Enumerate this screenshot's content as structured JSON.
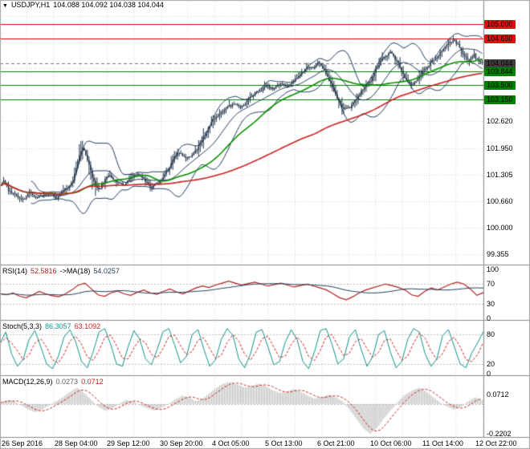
{
  "header": {
    "expand_icon": "▼",
    "symbol": "USDJPY,H1",
    "ohlc": "104.088 104.092 104.038 104.044"
  },
  "colors": {
    "grid": "#d6d6d6",
    "candle": "#24364a",
    "bollinger": "#1f3a5f",
    "ma_red": "#cc2020",
    "ma_green": "#089000",
    "hline_red": "#e00000",
    "hline_green": "#007f00",
    "price_line": "#777777",
    "badge_red": "#dd1111",
    "badge_green": "#007f00",
    "badge_dark": "#3f3f3f",
    "rsi": "#b22222",
    "rsi_ma": "#24425f",
    "stoch": "#12948b",
    "stoch_signal": "#cc2222",
    "macd_hist": "#b5b5b5",
    "macd_signal": "#cc2222",
    "levels": "#bdbdbd",
    "divider": "#8a8a8a",
    "border": "#a8a8a8"
  },
  "price_axis": {
    "badges": [
      {
        "label": "105.000",
        "value": 105.0,
        "type": "red"
      },
      {
        "label": "104.650",
        "value": 104.65,
        "type": "red"
      },
      {
        "label": "104.044",
        "value": 104.044,
        "type": "dark"
      },
      {
        "label": "103.844",
        "value": 103.844,
        "type": "green"
      },
      {
        "label": "103.500",
        "value": 103.5,
        "type": "green"
      },
      {
        "label": "103.150",
        "value": 103.15,
        "type": "green"
      }
    ],
    "labels": [
      {
        "label": "102.620",
        "value": 102.62
      },
      {
        "label": "101.950",
        "value": 101.95
      },
      {
        "label": "101.305",
        "value": 101.305
      },
      {
        "label": "100.660",
        "value": 100.66
      },
      {
        "label": "100.000",
        "value": 100.0
      },
      {
        "label": "99.355",
        "value": 99.355
      }
    ]
  },
  "panels": {
    "rsi": {
      "title": "RSI(14)",
      "value": "52.5816",
      "title2": "->MA(18)",
      "value2": "54.0257",
      "labels": [
        {
          "label": "100",
          "value": 100
        },
        {
          "label": "70",
          "value": 70
        },
        {
          "label": "30",
          "value": 30
        },
        {
          "label": "0",
          "value": 0
        }
      ]
    },
    "stoch": {
      "title": "Stoch(5,3,3)",
      "value": "86.3057",
      "value2": "63.1092",
      "labels": [
        {
          "label": "80",
          "value": 80
        },
        {
          "label": "20",
          "value": 20
        },
        {
          "label": "0",
          "value": 0
        }
      ]
    },
    "macd": {
      "title": "MACD(12,26,9)",
      "value": "0.0273",
      "value2": "0.0712",
      "labels": [
        {
          "label": "0.0712",
          "value": 0.0712
        },
        {
          "label": "-0.2202",
          "value": -0.2202
        }
      ]
    }
  },
  "time_axis": {
    "labels": [
      "26 Sep 2016",
      "28 Sep 04:00",
      "29 Sep 12:00",
      "30 Sep 20:00",
      "4 Oct 05:00",
      "5 Oct 13:00",
      "6 Oct 21:00",
      "10 Oct 06:00",
      "11 Oct 14:00",
      "12 Oct 22:00"
    ]
  },
  "chart_data": [
    {
      "type": "candlestick",
      "title": "USDJPY,H1",
      "timeframe": "H1",
      "last_bar": {
        "open": 104.088,
        "high": 104.092,
        "low": 104.038,
        "close": 104.044
      },
      "ylim": [
        99.1,
        105.59
      ],
      "bars": 300,
      "noise_seed": 42,
      "grid_step": 0.645,
      "horizontal_levels": [
        {
          "value": 105.0,
          "color": "red"
        },
        {
          "value": 104.65,
          "color": "red"
        },
        {
          "value": 103.844,
          "color": "green"
        },
        {
          "value": 103.5,
          "color": "green"
        },
        {
          "value": 103.15,
          "color": "green"
        }
      ],
      "current_price": 104.044,
      "overlays": [
        {
          "name": "bollinger-bands",
          "period": 20,
          "deviation": 2
        },
        {
          "name": "ma-green-fast",
          "period": 45
        },
        {
          "name": "ma-red-slow",
          "period": 140
        }
      ],
      "close_path": [
        [
          0.0,
          101.05
        ],
        [
          0.008,
          101.18
        ],
        [
          0.016,
          100.95
        ],
        [
          0.03,
          100.8
        ],
        [
          0.045,
          100.68
        ],
        [
          0.06,
          100.85
        ],
        [
          0.075,
          100.74
        ],
        [
          0.09,
          100.8
        ],
        [
          0.103,
          100.86
        ],
        [
          0.115,
          100.7
        ],
        [
          0.13,
          100.9
        ],
        [
          0.14,
          101.0
        ],
        [
          0.15,
          101.15
        ],
        [
          0.158,
          101.5
        ],
        [
          0.165,
          101.85
        ],
        [
          0.172,
          102.0
        ],
        [
          0.18,
          101.7
        ],
        [
          0.188,
          101.35
        ],
        [
          0.196,
          101.05
        ],
        [
          0.205,
          100.95
        ],
        [
          0.213,
          101.1
        ],
        [
          0.225,
          101.3
        ],
        [
          0.24,
          101.15
        ],
        [
          0.255,
          101.05
        ],
        [
          0.27,
          101.2
        ],
        [
          0.285,
          101.35
        ],
        [
          0.3,
          101.15
        ],
        [
          0.315,
          101.0
        ],
        [
          0.322,
          101.05
        ],
        [
          0.335,
          101.2
        ],
        [
          0.35,
          101.45
        ],
        [
          0.36,
          101.75
        ],
        [
          0.372,
          101.85
        ],
        [
          0.385,
          101.7
        ],
        [
          0.397,
          101.78
        ],
        [
          0.41,
          101.95
        ],
        [
          0.42,
          102.2
        ],
        [
          0.429,
          102.4
        ],
        [
          0.44,
          102.6
        ],
        [
          0.455,
          102.8
        ],
        [
          0.47,
          102.95
        ],
        [
          0.485,
          103.05
        ],
        [
          0.5,
          102.95
        ],
        [
          0.515,
          103.15
        ],
        [
          0.53,
          103.3
        ],
        [
          0.538,
          103.35
        ],
        [
          0.55,
          103.5
        ],
        [
          0.565,
          103.4
        ],
        [
          0.58,
          103.55
        ],
        [
          0.595,
          103.5
        ],
        [
          0.61,
          103.6
        ],
        [
          0.625,
          103.8
        ],
        [
          0.64,
          103.95
        ],
        [
          0.648,
          103.9
        ],
        [
          0.66,
          104.1
        ],
        [
          0.672,
          103.85
        ],
        [
          0.685,
          103.55
        ],
        [
          0.7,
          103.15
        ],
        [
          0.712,
          102.9
        ],
        [
          0.725,
          102.95
        ],
        [
          0.74,
          103.2
        ],
        [
          0.755,
          103.45
        ],
        [
          0.768,
          103.6
        ],
        [
          0.782,
          103.95
        ],
        [
          0.797,
          104.2
        ],
        [
          0.81,
          104.3
        ],
        [
          0.825,
          104.05
        ],
        [
          0.84,
          103.65
        ],
        [
          0.855,
          103.5
        ],
        [
          0.868,
          103.7
        ],
        [
          0.877,
          103.85
        ],
        [
          0.89,
          104.0
        ],
        [
          0.903,
          104.15
        ],
        [
          0.917,
          104.35
        ],
        [
          0.93,
          104.55
        ],
        [
          0.942,
          104.6
        ],
        [
          0.953,
          104.45
        ],
        [
          0.963,
          104.2
        ],
        [
          0.973,
          104.1
        ],
        [
          0.983,
          104.25
        ],
        [
          0.992,
          104.1
        ],
        [
          1.0,
          104.044
        ]
      ]
    },
    {
      "type": "line",
      "name": "RSI",
      "params": "14",
      "last": 52.5816,
      "ma_period": 18,
      "ma_last": 54.0257,
      "range": [
        0,
        100
      ],
      "levels": [
        70,
        30
      ],
      "values": [
        50,
        48,
        52,
        45,
        42,
        48,
        55,
        50,
        46,
        44,
        50,
        58,
        68,
        72,
        60,
        48,
        45,
        52,
        56,
        50,
        47,
        53,
        58,
        52,
        49,
        55,
        60,
        54,
        50,
        56,
        62,
        66,
        63,
        68,
        72,
        76,
        72,
        68,
        71,
        74,
        70,
        66,
        69,
        72,
        68,
        64,
        67,
        70,
        66,
        62,
        58,
        50,
        42,
        38,
        44,
        52,
        58,
        62,
        66,
        70,
        67,
        63,
        58,
        48,
        45,
        55,
        62,
        58,
        64,
        70,
        74,
        70,
        60,
        47,
        52.58
      ]
    },
    {
      "type": "line",
      "name": "Stochastic",
      "params": "5,3,3",
      "last": 86.3057,
      "signal_last": 63.1092,
      "range": [
        0,
        100
      ],
      "levels": [
        80,
        20
      ],
      "values": [
        62,
        85,
        40,
        15,
        30,
        70,
        88,
        55,
        20,
        10,
        35,
        75,
        90,
        65,
        25,
        12,
        45,
        85,
        92,
        60,
        20,
        15,
        55,
        88,
        70,
        30,
        18,
        50,
        86,
        92,
        58,
        22,
        35,
        80,
        90,
        50,
        15,
        28,
        70,
        92,
        78,
        30,
        12,
        40,
        85,
        90,
        55,
        18,
        25,
        65,
        90,
        70,
        25,
        10,
        45,
        88,
        92,
        60,
        20,
        30,
        75,
        90,
        50,
        15,
        35,
        80,
        88,
        45,
        12,
        25,
        70,
        92,
        85,
        40,
        15,
        30,
        78,
        90,
        55,
        20,
        12,
        42,
        63,
        86.3
      ]
    },
    {
      "type": "bar",
      "name": "MACD",
      "params": "12,26,9",
      "last": 0.0273,
      "signal_last": 0.0712,
      "ylim": [
        -0.2202,
        0.0712
      ],
      "values": [
        0.01,
        0.03,
        0.02,
        -0.01,
        -0.04,
        -0.06,
        -0.04,
        -0.01,
        0.02,
        0.05,
        0.09,
        0.12,
        0.08,
        0.03,
        -0.02,
        -0.05,
        -0.03,
        0.0,
        0.03,
        0.02,
        -0.01,
        -0.03,
        -0.05,
        -0.03,
        0.0,
        0.03,
        0.06,
        0.05,
        0.02,
        0.04,
        0.08,
        0.12,
        0.15,
        0.16,
        0.14,
        0.12,
        0.13,
        0.15,
        0.13,
        0.1,
        0.08,
        0.09,
        0.11,
        0.09,
        0.06,
        0.04,
        0.05,
        0.07,
        0.05,
        0.02,
        -0.04,
        -0.11,
        -0.18,
        -0.22,
        -0.17,
        -0.1,
        -0.04,
        0.02,
        0.07,
        0.1,
        0.12,
        0.09,
        0.05,
        0.01,
        -0.02,
        -0.04,
        -0.02,
        0.02,
        0.05,
        0.0273
      ]
    }
  ]
}
